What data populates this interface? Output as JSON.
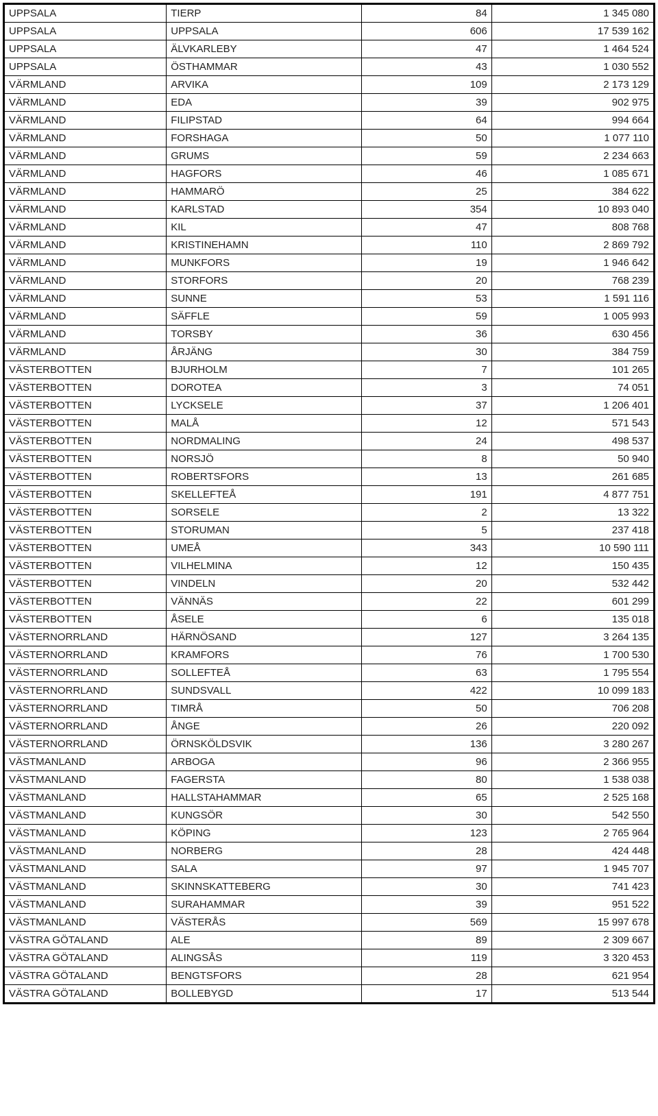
{
  "rows": [
    {
      "region": "UPPSALA",
      "muni": "TIERP",
      "count": "84",
      "value": "1 345 080"
    },
    {
      "region": "UPPSALA",
      "muni": "UPPSALA",
      "count": "606",
      "value": "17 539 162"
    },
    {
      "region": "UPPSALA",
      "muni": "ÄLVKARLEBY",
      "count": "47",
      "value": "1 464 524"
    },
    {
      "region": "UPPSALA",
      "muni": "ÖSTHAMMAR",
      "count": "43",
      "value": "1 030 552"
    },
    {
      "region": "VÄRMLAND",
      "muni": "ARVIKA",
      "count": "109",
      "value": "2 173 129"
    },
    {
      "region": "VÄRMLAND",
      "muni": "EDA",
      "count": "39",
      "value": "902 975"
    },
    {
      "region": "VÄRMLAND",
      "muni": "FILIPSTAD",
      "count": "64",
      "value": "994 664"
    },
    {
      "region": "VÄRMLAND",
      "muni": "FORSHAGA",
      "count": "50",
      "value": "1 077 110"
    },
    {
      "region": "VÄRMLAND",
      "muni": "GRUMS",
      "count": "59",
      "value": "2 234 663"
    },
    {
      "region": "VÄRMLAND",
      "muni": "HAGFORS",
      "count": "46",
      "value": "1 085 671"
    },
    {
      "region": "VÄRMLAND",
      "muni": "HAMMARÖ",
      "count": "25",
      "value": "384 622"
    },
    {
      "region": "VÄRMLAND",
      "muni": "KARLSTAD",
      "count": "354",
      "value": "10 893 040"
    },
    {
      "region": "VÄRMLAND",
      "muni": "KIL",
      "count": "47",
      "value": "808 768"
    },
    {
      "region": "VÄRMLAND",
      "muni": "KRISTINEHAMN",
      "count": "110",
      "value": "2 869 792"
    },
    {
      "region": "VÄRMLAND",
      "muni": "MUNKFORS",
      "count": "19",
      "value": "1 946 642"
    },
    {
      "region": "VÄRMLAND",
      "muni": "STORFORS",
      "count": "20",
      "value": "768 239"
    },
    {
      "region": "VÄRMLAND",
      "muni": "SUNNE",
      "count": "53",
      "value": "1 591 116"
    },
    {
      "region": "VÄRMLAND",
      "muni": "SÄFFLE",
      "count": "59",
      "value": "1 005 993"
    },
    {
      "region": "VÄRMLAND",
      "muni": "TORSBY",
      "count": "36",
      "value": "630 456"
    },
    {
      "region": "VÄRMLAND",
      "muni": "ÅRJÄNG",
      "count": "30",
      "value": "384 759"
    },
    {
      "region": "VÄSTERBOTTEN",
      "muni": "BJURHOLM",
      "count": "7",
      "value": "101 265"
    },
    {
      "region": "VÄSTERBOTTEN",
      "muni": "DOROTEA",
      "count": "3",
      "value": "74 051"
    },
    {
      "region": "VÄSTERBOTTEN",
      "muni": "LYCKSELE",
      "count": "37",
      "value": "1 206 401"
    },
    {
      "region": "VÄSTERBOTTEN",
      "muni": "MALÅ",
      "count": "12",
      "value": "571 543"
    },
    {
      "region": "VÄSTERBOTTEN",
      "muni": "NORDMALING",
      "count": "24",
      "value": "498 537"
    },
    {
      "region": "VÄSTERBOTTEN",
      "muni": "NORSJÖ",
      "count": "8",
      "value": "50 940"
    },
    {
      "region": "VÄSTERBOTTEN",
      "muni": "ROBERTSFORS",
      "count": "13",
      "value": "261 685"
    },
    {
      "region": "VÄSTERBOTTEN",
      "muni": "SKELLEFTEÅ",
      "count": "191",
      "value": "4 877 751"
    },
    {
      "region": "VÄSTERBOTTEN",
      "muni": "SORSELE",
      "count": "2",
      "value": "13 322"
    },
    {
      "region": "VÄSTERBOTTEN",
      "muni": "STORUMAN",
      "count": "5",
      "value": "237 418"
    },
    {
      "region": "VÄSTERBOTTEN",
      "muni": "UMEÅ",
      "count": "343",
      "value": "10 590 111"
    },
    {
      "region": "VÄSTERBOTTEN",
      "muni": "VILHELMINA",
      "count": "12",
      "value": "150 435"
    },
    {
      "region": "VÄSTERBOTTEN",
      "muni": "VINDELN",
      "count": "20",
      "value": "532 442"
    },
    {
      "region": "VÄSTERBOTTEN",
      "muni": "VÄNNÄS",
      "count": "22",
      "value": "601 299"
    },
    {
      "region": "VÄSTERBOTTEN",
      "muni": "ÅSELE",
      "count": "6",
      "value": "135 018"
    },
    {
      "region": "VÄSTERNORRLAND",
      "muni": "HÄRNÖSAND",
      "count": "127",
      "value": "3 264 135"
    },
    {
      "region": "VÄSTERNORRLAND",
      "muni": "KRAMFORS",
      "count": "76",
      "value": "1 700 530"
    },
    {
      "region": "VÄSTERNORRLAND",
      "muni": "SOLLEFTEÅ",
      "count": "63",
      "value": "1 795 554"
    },
    {
      "region": "VÄSTERNORRLAND",
      "muni": "SUNDSVALL",
      "count": "422",
      "value": "10 099 183"
    },
    {
      "region": "VÄSTERNORRLAND",
      "muni": "TIMRÅ",
      "count": "50",
      "value": "706 208"
    },
    {
      "region": "VÄSTERNORRLAND",
      "muni": "ÅNGE",
      "count": "26",
      "value": "220 092"
    },
    {
      "region": "VÄSTERNORRLAND",
      "muni": "ÖRNSKÖLDSVIK",
      "count": "136",
      "value": "3 280 267"
    },
    {
      "region": "VÄSTMANLAND",
      "muni": "ARBOGA",
      "count": "96",
      "value": "2 366 955"
    },
    {
      "region": "VÄSTMANLAND",
      "muni": "FAGERSTA",
      "count": "80",
      "value": "1 538 038"
    },
    {
      "region": "VÄSTMANLAND",
      "muni": "HALLSTAHAMMAR",
      "count": "65",
      "value": "2 525 168"
    },
    {
      "region": "VÄSTMANLAND",
      "muni": "KUNGSÖR",
      "count": "30",
      "value": "542 550"
    },
    {
      "region": "VÄSTMANLAND",
      "muni": "KÖPING",
      "count": "123",
      "value": "2 765 964"
    },
    {
      "region": "VÄSTMANLAND",
      "muni": "NORBERG",
      "count": "28",
      "value": "424 448"
    },
    {
      "region": "VÄSTMANLAND",
      "muni": "SALA",
      "count": "97",
      "value": "1 945 707"
    },
    {
      "region": "VÄSTMANLAND",
      "muni": "SKINNSKATTEBERG",
      "count": "30",
      "value": "741 423"
    },
    {
      "region": "VÄSTMANLAND",
      "muni": "SURAHAMMAR",
      "count": "39",
      "value": "951 522"
    },
    {
      "region": "VÄSTMANLAND",
      "muni": "VÄSTERÅS",
      "count": "569",
      "value": "15 997 678"
    },
    {
      "region": "VÄSTRA GÖTALAND",
      "muni": "ALE",
      "count": "89",
      "value": "2 309 667"
    },
    {
      "region": "VÄSTRA GÖTALAND",
      "muni": "ALINGSÅS",
      "count": "119",
      "value": "3 320 453"
    },
    {
      "region": "VÄSTRA GÖTALAND",
      "muni": "BENGTSFORS",
      "count": "28",
      "value": "621 954"
    },
    {
      "region": "VÄSTRA GÖTALAND",
      "muni": "BOLLEBYGD",
      "count": "17",
      "value": "513 544"
    }
  ]
}
